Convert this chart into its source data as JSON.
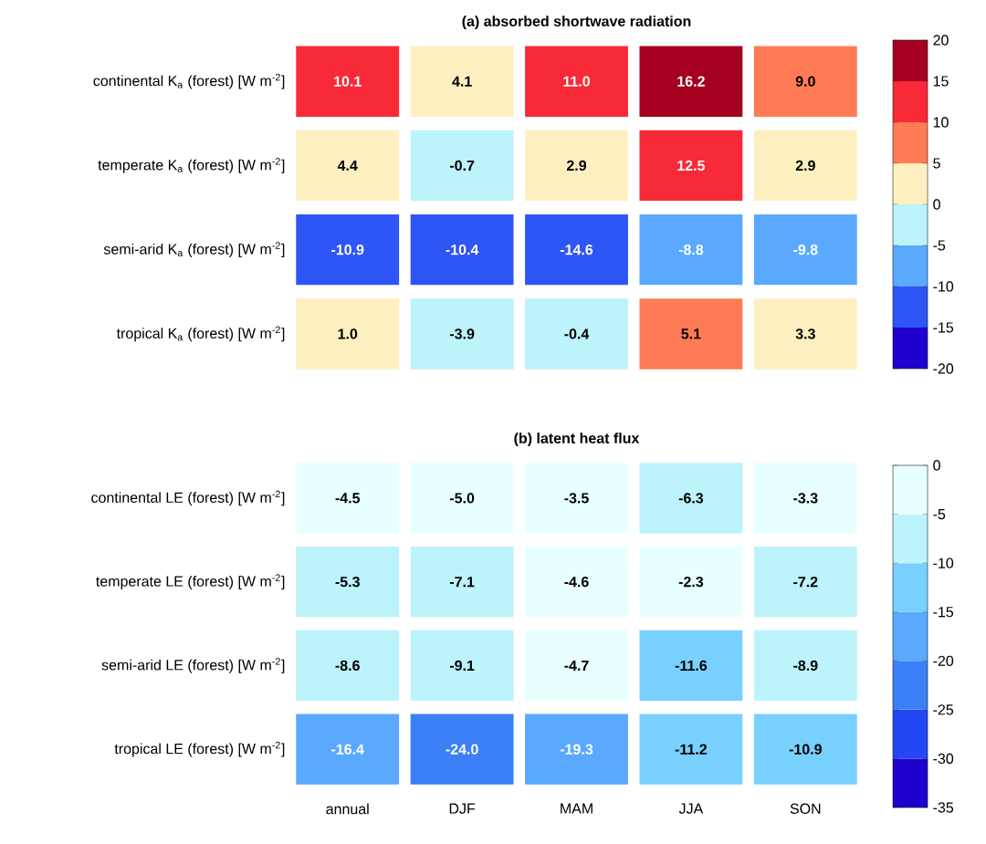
{
  "chart_data": [
    {
      "type": "heatmap",
      "title": "(a) absorbed shortwave radiation",
      "categories": [
        null,
        null,
        null,
        null,
        null
      ],
      "y_categories": [
        "continental K$_{a}$ (forest) [W m$^{-2}$]",
        "temperate K$_{a}$ (forest) [W m$^{-2}$]",
        "semi-arid K$_{a}$ (forest) [W m$^{-2}$]",
        "tropical K$_{a}$ (forest) [W m$^{-2}$]"
      ],
      "cells": [
        [
          10.1,
          4.1,
          11.0,
          16.2,
          9.0
        ],
        [
          4.4,
          -0.7,
          2.9,
          12.5,
          2.9
        ],
        [
          -10.9,
          -10.4,
          -14.6,
          -8.8,
          -9.8
        ],
        [
          1.0,
          -3.9,
          -0.4,
          5.1,
          3.3
        ]
      ],
      "cell_labels": [
        [
          "10.1",
          "4.1",
          "11.0",
          "16.2",
          "9.0"
        ],
        [
          "4.4",
          "-0.7",
          "2.9",
          "12.5",
          "2.9"
        ],
        [
          "-10.9",
          "-10.4",
          "-14.6",
          "-8.8",
          "-9.8"
        ],
        [
          "1.0",
          "-3.9",
          "-0.4",
          "5.1",
          "3.3"
        ]
      ],
      "clim": [
        -20,
        20
      ],
      "cticks": [
        -20,
        -15,
        -10,
        -5,
        0,
        5,
        10,
        15,
        20
      ],
      "tick_labels": "y"
    },
    {
      "type": "heatmap",
      "title": "(b) latent heat flux",
      "categories": [
        "annual",
        "DJF",
        "MAM",
        "JJA",
        "SON"
      ],
      "y_categories": [
        "continental LE (forest) [W m$^{-2}$]",
        "temperate LE (forest) [W m$^{-2}$]",
        "semi-arid LE (forest) [W m$^{-2}$]",
        "tropical LE (forest) [W m$^{-2}$]"
      ],
      "cells": [
        [
          -4.5,
          -5.0,
          -3.5,
          -6.3,
          -3.3
        ],
        [
          -5.3,
          -7.1,
          -4.6,
          -2.3,
          -7.2
        ],
        [
          -8.6,
          -9.1,
          -4.7,
          -11.6,
          -8.9
        ],
        [
          -16.4,
          -24.0,
          -19.3,
          -11.2,
          -10.9
        ]
      ],
      "cell_labels": [
        [
          "-4.5",
          "-5.0",
          "-3.5",
          "-6.3",
          "-3.3"
        ],
        [
          "-5.3",
          "-7.1",
          "-4.6",
          "-2.3",
          "-7.2"
        ],
        [
          "-8.6",
          "-9.1",
          "-4.7",
          "-11.6",
          "-8.9"
        ],
        [
          "-16.4",
          "-24.0",
          "-19.3",
          "-11.2",
          "-10.9"
        ]
      ],
      "clim": [
        -35,
        0
      ],
      "cticks": [
        -35,
        -30,
        -25,
        -20,
        -15,
        -10,
        -5,
        0
      ]
    }
  ]
}
